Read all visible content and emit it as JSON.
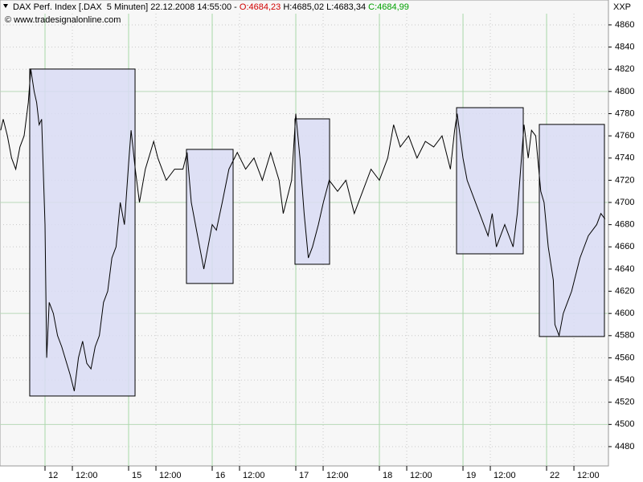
{
  "header": {
    "title": "DAX Perf. Index [.DAX  5 Minuten] 22.12.2008 14:55:00 - ",
    "open": "O:4684,23",
    "high_low": " H:4685,02 L:4683,34 ",
    "close": "C:4684,99",
    "copyright": "© www.tradesignalonline.com",
    "symbol": "XXP"
  },
  "chart_data": {
    "type": "line",
    "xlim": [
      0.4615,
      7.74
    ],
    "ylim": [
      4462.6,
      4870.1
    ],
    "yticks": [
      4480,
      4500,
      4520,
      4540,
      4560,
      4580,
      4600,
      4620,
      4640,
      4660,
      4680,
      4700,
      4720,
      4740,
      4760,
      4780,
      4800,
      4820,
      4840,
      4860
    ],
    "xticks": [
      {
        "value": 1,
        "label": "12"
      },
      {
        "value": 1.327,
        "label": "12:00"
      },
      {
        "value": 2,
        "label": "15"
      },
      {
        "value": 2.327,
        "label": "12:00"
      },
      {
        "value": 3,
        "label": "16"
      },
      {
        "value": 3.327,
        "label": "12:00"
      },
      {
        "value": 4,
        "label": "17"
      },
      {
        "value": 4.327,
        "label": "12:00"
      },
      {
        "value": 5,
        "label": "18"
      },
      {
        "value": 5.327,
        "label": "12:00"
      },
      {
        "value": 6,
        "label": "19"
      },
      {
        "value": 6.327,
        "label": "12:00"
      },
      {
        "value": 7,
        "label": "22"
      },
      {
        "value": 7.327,
        "label": "12:00"
      }
    ],
    "grid": true,
    "color": "#000000",
    "box_color": "#d9dcf5",
    "series": [
      {
        "name": "DAX",
        "color": "#000000",
        "x": [
          0.47,
          0.5,
          0.55,
          0.6,
          0.65,
          0.7,
          0.75,
          0.8,
          0.83,
          0.87,
          0.9,
          0.93,
          0.96,
          1.0,
          1.02,
          1.05,
          1.1,
          1.15,
          1.2,
          1.3,
          1.35,
          1.4,
          1.45,
          1.5,
          1.55,
          1.6,
          1.65,
          1.7,
          1.75,
          1.8,
          1.85,
          1.9,
          1.95,
          2.0,
          2.03,
          2.08,
          2.13,
          2.2,
          2.3,
          2.35,
          2.45,
          2.55,
          2.65,
          2.7,
          2.75,
          2.8,
          2.85,
          2.9,
          2.95,
          3.0,
          3.05,
          3.12,
          3.2,
          3.3,
          3.4,
          3.5,
          3.6,
          3.7,
          3.8,
          3.85,
          3.95,
          4.0,
          4.05,
          4.1,
          4.15,
          4.2,
          4.27,
          4.33,
          4.4,
          4.5,
          4.6,
          4.7,
          4.8,
          4.9,
          5.0,
          5.1,
          5.17,
          5.25,
          5.35,
          5.45,
          5.55,
          5.65,
          5.75,
          5.85,
          5.9,
          5.93,
          6.0,
          6.05,
          6.1,
          6.2,
          6.3,
          6.35,
          6.4,
          6.5,
          6.6,
          6.65,
          6.7,
          6.73,
          6.78,
          6.82,
          6.87,
          6.93,
          6.97,
          7.02,
          7.08,
          7.1,
          7.15,
          7.2,
          7.3,
          7.4,
          7.5,
          7.6,
          7.65,
          7.7
        ],
        "values": [
          4765,
          4775,
          4760,
          4740,
          4730,
          4750,
          4760,
          4790,
          4820,
          4800,
          4790,
          4770,
          4775,
          4680,
          4560,
          4610,
          4600,
          4580,
          4570,
          4545,
          4530,
          4560,
          4575,
          4555,
          4550,
          4570,
          4580,
          4610,
          4620,
          4650,
          4660,
          4700,
          4680,
          4735,
          4765,
          4730,
          4700,
          4730,
          4755,
          4740,
          4720,
          4730,
          4730,
          4745,
          4700,
          4680,
          4660,
          4640,
          4660,
          4680,
          4675,
          4700,
          4730,
          4745,
          4730,
          4740,
          4720,
          4745,
          4720,
          4690,
          4720,
          4780,
          4740,
          4690,
          4650,
          4660,
          4680,
          4700,
          4720,
          4710,
          4720,
          4690,
          4710,
          4730,
          4720,
          4740,
          4770,
          4750,
          4760,
          4740,
          4755,
          4750,
          4760,
          4730,
          4765,
          4780,
          4740,
          4720,
          4710,
          4690,
          4670,
          4690,
          4660,
          4680,
          4660,
          4690,
          4740,
          4770,
          4740,
          4765,
          4760,
          4710,
          4700,
          4660,
          4630,
          4590,
          4580,
          4600,
          4620,
          4650,
          4670,
          4680,
          4690,
          4684.99
        ]
      }
    ],
    "boxes": [
      {
        "x0": 0.817,
        "x1": 2.077,
        "y0": 4525.6,
        "y1": 4820.2
      },
      {
        "x0": 2.692,
        "x1": 3.25,
        "y0": 4627.0,
        "y1": 4747.8
      },
      {
        "x0": 3.99,
        "x1": 4.404,
        "y0": 4644.3,
        "y1": 4775.3
      },
      {
        "x0": 5.923,
        "x1": 6.721,
        "y0": 4653.7,
        "y1": 4785.4
      },
      {
        "x0": 6.913,
        "x1": 7.692,
        "y0": 4579.2,
        "y1": 4770.3
      }
    ]
  }
}
